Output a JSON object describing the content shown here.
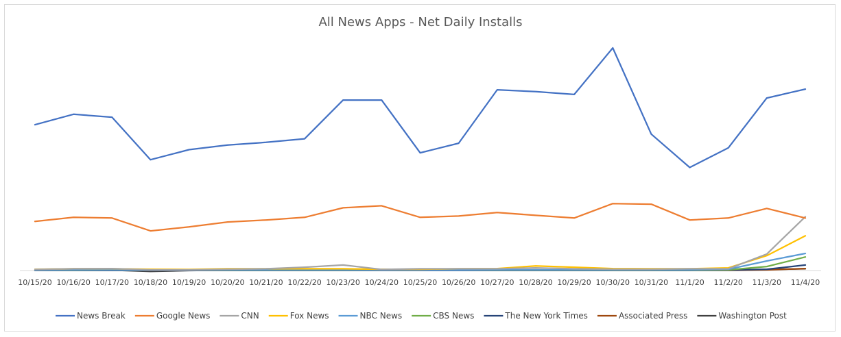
{
  "chart_data": {
    "type": "line",
    "title": "All News Apps - Net Daily Installs",
    "xlabel": "",
    "ylabel": "",
    "categories": [
      "10/15/20",
      "10/16/20",
      "10/17/20",
      "10/18/20",
      "10/19/20",
      "10/20/20",
      "10/21/20",
      "10/22/20",
      "10/23/20",
      "10/24/20",
      "10/25/20",
      "10/26/20",
      "10/27/20",
      "10/28/20",
      "10/29/20",
      "10/30/20",
      "10/31/20",
      "11/1/20",
      "11/2/20",
      "11/3/20",
      "11/4/20"
    ],
    "ylim": [
      0,
      100
    ],
    "grid": false,
    "legend_position": "bottom",
    "series": [
      {
        "name": "News Break",
        "color": "#4472C4",
        "values": [
          65.5,
          70.2,
          68.9,
          49.8,
          54.3,
          56.4,
          57.6,
          59.2,
          76.6,
          76.6,
          52.9,
          57.2,
          81.2,
          80.4,
          79.1,
          100.0,
          61.3,
          46.3,
          55.1,
          77.5,
          81.5
        ]
      },
      {
        "name": "Google News",
        "color": "#ED7D31",
        "values": [
          22.1,
          23.9,
          23.6,
          17.8,
          19.6,
          21.8,
          22.7,
          23.9,
          28.2,
          29.1,
          23.9,
          24.5,
          26.1,
          24.8,
          23.6,
          30.1,
          29.8,
          22.7,
          23.6,
          27.9,
          23.6
        ]
      },
      {
        "name": "CNN",
        "color": "#A5A5A5",
        "values": [
          0.5,
          0.8,
          0.9,
          0.3,
          0.3,
          0.6,
          0.8,
          1.5,
          2.5,
          0.5,
          0.8,
          0.8,
          0.8,
          1.2,
          0.8,
          0.6,
          0.6,
          0.8,
          0.8,
          7.4,
          24.2
        ]
      },
      {
        "name": "Fox News",
        "color": "#FFC000",
        "values": [
          0.6,
          0.8,
          0.8,
          0.6,
          0.5,
          0.8,
          0.8,
          0.8,
          0.8,
          0.6,
          0.6,
          0.8,
          0.9,
          2.1,
          1.5,
          0.9,
          0.8,
          0.8,
          1.2,
          6.7,
          15.6
        ]
      },
      {
        "name": "NBC News",
        "color": "#5B9BD5",
        "values": [
          0.2,
          0.3,
          0.3,
          0.2,
          0.2,
          0.3,
          0.3,
          0.3,
          0.3,
          0.2,
          0.2,
          0.2,
          0.3,
          0.3,
          0.3,
          0.3,
          0.3,
          0.3,
          0.6,
          4.3,
          7.7
        ]
      },
      {
        "name": "CBS News",
        "color": "#70AD47",
        "values": [
          0.2,
          0.2,
          0.3,
          0.2,
          0.2,
          0.2,
          0.2,
          0.2,
          0.2,
          0.2,
          0.2,
          0.2,
          0.2,
          0.2,
          0.2,
          0.2,
          0.2,
          0.2,
          0.3,
          1.8,
          6.1
        ]
      },
      {
        "name": "The New York Times",
        "color": "#264478",
        "values": [
          0.1,
          0.1,
          0.1,
          0.1,
          0.1,
          0.1,
          0.1,
          0.1,
          0.1,
          0.1,
          0.1,
          0.1,
          0.1,
          0.1,
          0.1,
          0.1,
          0.1,
          0.1,
          0.2,
          0.6,
          2.5
        ]
      },
      {
        "name": "Associated Press",
        "color": "#9E480E",
        "values": [
          0.1,
          0.1,
          0.1,
          0.1,
          0.1,
          0.1,
          0.1,
          0.1,
          0.1,
          0.1,
          0.1,
          0.1,
          0.1,
          0.1,
          0.1,
          0.1,
          0.1,
          0.1,
          0.1,
          0.3,
          0.9
        ]
      },
      {
        "name": "Washington Post",
        "color": "#404040",
        "values": [
          0.2,
          0.3,
          0.2,
          -0.4,
          0.0,
          0.2,
          0.2,
          0.2,
          0.2,
          0.2,
          0.2,
          0.2,
          0.3,
          0.3,
          0.2,
          0.2,
          0.2,
          0.2,
          0.3,
          0.5,
          0.8
        ]
      }
    ]
  }
}
